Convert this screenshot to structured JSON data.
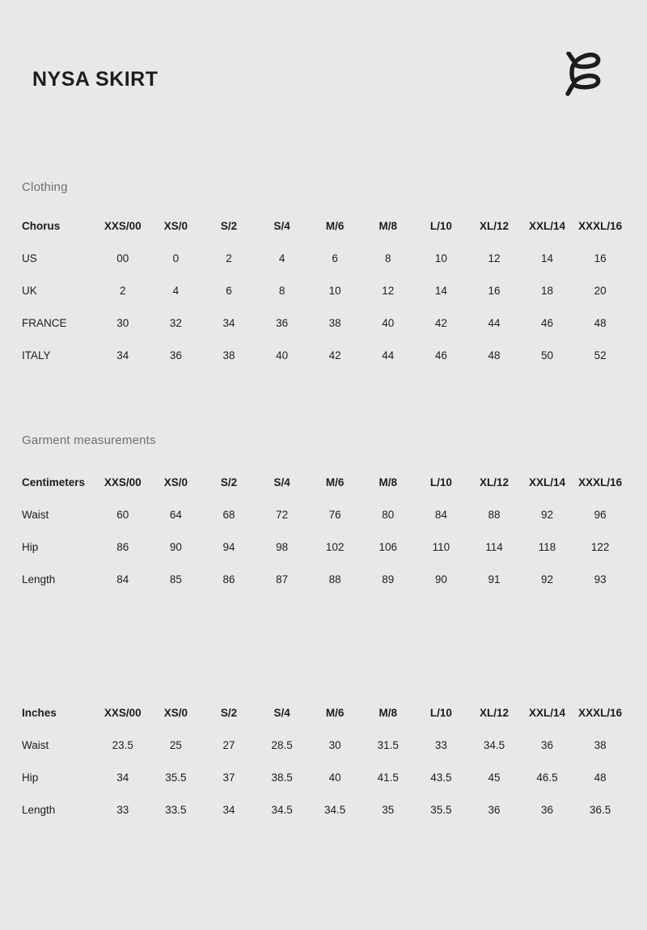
{
  "page": {
    "title": "NYSA SKIRT",
    "logo_icon": "chorus-script-logo"
  },
  "colors": {
    "background": "#e8e8e7",
    "text": "#1d1d1d",
    "muted_heading": "#6f6f6f"
  },
  "sections": {
    "clothing": {
      "heading": "Clothing",
      "table": {
        "header_label": "Chorus",
        "columns": [
          "XXS/00",
          "XS/0",
          "S/2",
          "S/4",
          "M/6",
          "M/8",
          "L/10",
          "XL/12",
          "XXL/14",
          "XXXL/16"
        ],
        "rows": [
          {
            "label": "US",
            "values": [
              "00",
              "0",
              "2",
              "4",
              "6",
              "8",
              "10",
              "12",
              "14",
              "16"
            ]
          },
          {
            "label": "UK",
            "values": [
              "2",
              "4",
              "6",
              "8",
              "10",
              "12",
              "14",
              "16",
              "18",
              "20"
            ]
          },
          {
            "label": "FRANCE",
            "values": [
              "30",
              "32",
              "34",
              "36",
              "38",
              "40",
              "42",
              "44",
              "46",
              "48"
            ]
          },
          {
            "label": "ITALY",
            "values": [
              "34",
              "36",
              "38",
              "40",
              "42",
              "44",
              "46",
              "48",
              "50",
              "52"
            ]
          }
        ]
      }
    },
    "garment": {
      "heading": "Garment measurements",
      "tables": [
        {
          "header_label": "Centimeters",
          "columns": [
            "XXS/00",
            "XS/0",
            "S/2",
            "S/4",
            "M/6",
            "M/8",
            "L/10",
            "XL/12",
            "XXL/14",
            "XXXL/16"
          ],
          "rows": [
            {
              "label": "Waist",
              "values": [
                "60",
                "64",
                "68",
                "72",
                "76",
                "80",
                "84",
                "88",
                "92",
                "96"
              ]
            },
            {
              "label": "Hip",
              "values": [
                "86",
                "90",
                "94",
                "98",
                "102",
                "106",
                "110",
                "114",
                "118",
                "122"
              ]
            },
            {
              "label": "Length",
              "values": [
                "84",
                "85",
                "86",
                "87",
                "88",
                "89",
                "90",
                "91",
                "92",
                "93"
              ]
            }
          ]
        },
        {
          "header_label": "Inches",
          "columns": [
            "XXS/00",
            "XS/0",
            "S/2",
            "S/4",
            "M/6",
            "M/8",
            "L/10",
            "XL/12",
            "XXL/14",
            "XXXL/16"
          ],
          "rows": [
            {
              "label": "Waist",
              "values": [
                "23.5",
                "25",
                "27",
                "28.5",
                "30",
                "31.5",
                "33",
                "34.5",
                "36",
                "38"
              ]
            },
            {
              "label": "Hip",
              "values": [
                "34",
                "35.5",
                "37",
                "38.5",
                "40",
                "41.5",
                "43.5",
                "45",
                "46.5",
                "48"
              ]
            },
            {
              "label": "Length",
              "values": [
                "33",
                "33.5",
                "34",
                "34.5",
                "34.5",
                "35",
                "35.5",
                "36",
                "36",
                "36.5"
              ]
            }
          ]
        }
      ]
    }
  }
}
